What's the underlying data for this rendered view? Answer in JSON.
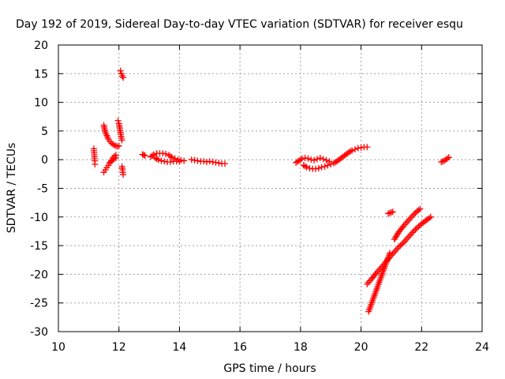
{
  "chart_data": {
    "type": "scatter",
    "title": "Day 192 of 2019, Sidereal Day-to-day VTEC variation (SDTVAR) for receiver esqu",
    "xlabel": "GPS time / hours",
    "ylabel": "SDTVAR / TECUs",
    "xlim": [
      10,
      24
    ],
    "ylim": [
      -30,
      20
    ],
    "xticks": [
      10,
      12,
      14,
      16,
      18,
      20,
      22,
      24
    ],
    "yticks": [
      -30,
      -25,
      -20,
      -15,
      -10,
      -5,
      0,
      5,
      10,
      15,
      20
    ],
    "xtick_labels": [
      "10",
      "12",
      "14",
      "16",
      "18",
      "20",
      "22",
      "24"
    ],
    "ytick_labels": [
      "-30",
      "-25",
      "-20",
      "-15",
      "-10",
      "-5",
      "0",
      "5",
      "10",
      "15",
      "20"
    ],
    "grid": true,
    "marker": "+",
    "color": "#ff0000",
    "series": [
      {
        "x": [
          11.17,
          11.18,
          11.19,
          11.2,
          11.21
        ],
        "y": [
          1.9,
          1.2,
          0.5,
          -0.2,
          -0.8
        ]
      },
      {
        "x": [
          11.5,
          11.55,
          11.6,
          11.65,
          11.7,
          11.75,
          11.8,
          11.85,
          11.9,
          11.95,
          12.0
        ],
        "y": [
          6.0,
          4.8,
          4.2,
          3.6,
          3.2,
          2.9,
          2.7,
          2.5,
          2.4,
          2.3,
          2.4
        ]
      },
      {
        "x": [
          11.5,
          11.55,
          11.6,
          11.65,
          11.7,
          11.75,
          11.8,
          11.85,
          11.9
        ],
        "y": [
          -2.2,
          -1.8,
          -1.4,
          -1.0,
          -0.6,
          -0.3,
          0.0,
          0.2,
          0.3
        ]
      },
      {
        "x": [
          11.7,
          11.75,
          11.8,
          11.85,
          11.9
        ],
        "y": [
          -0.5,
          -0.1,
          0.3,
          0.6,
          0.8
        ]
      },
      {
        "x": [
          11.97,
          12.0,
          12.03,
          12.06,
          12.1
        ],
        "y": [
          6.8,
          6.3,
          5.4,
          4.4,
          3.4
        ]
      },
      {
        "x": [
          12.05,
          12.08,
          12.11,
          12.14
        ],
        "y": [
          15.5,
          15.0,
          14.6,
          14.3
        ]
      },
      {
        "x": [
          12.1,
          12.12,
          12.14
        ],
        "y": [
          -1.2,
          -1.8,
          -2.6
        ]
      },
      {
        "x": [
          12.78,
          12.82,
          12.86
        ],
        "y": [
          0.9,
          0.8,
          0.7
        ]
      },
      {
        "x": [
          13.05,
          13.15,
          13.25,
          13.35,
          13.45,
          13.55,
          13.65,
          13.75,
          13.85,
          13.95,
          14.05,
          14.15
        ],
        "y": [
          0.5,
          0.9,
          1.1,
          1.1,
          1.1,
          1.0,
          0.8,
          0.4,
          0.2,
          0.0,
          -0.1,
          -0.2
        ]
      },
      {
        "x": [
          13.2,
          13.3,
          13.4,
          13.5,
          13.6,
          13.7,
          13.8,
          13.9,
          14.0
        ],
        "y": [
          0.3,
          0.0,
          -0.2,
          -0.3,
          -0.4,
          -0.4,
          -0.3,
          -0.3,
          -0.3
        ]
      },
      {
        "x": [
          14.4,
          14.5,
          14.6,
          14.7,
          14.8,
          14.9,
          15.0,
          15.1,
          15.2,
          15.3,
          15.4,
          15.5
        ],
        "y": [
          0.0,
          -0.1,
          -0.2,
          -0.3,
          -0.3,
          -0.4,
          -0.3,
          -0.4,
          -0.5,
          -0.6,
          -0.7,
          -0.7
        ]
      },
      {
        "x": [
          17.85,
          17.95,
          18.05,
          18.15,
          18.25,
          18.35,
          18.45,
          18.55,
          18.65,
          18.75,
          18.85,
          18.95
        ],
        "y": [
          -0.5,
          -0.2,
          0.2,
          0.3,
          0.2,
          0.0,
          -0.1,
          0.1,
          0.3,
          0.1,
          -0.1,
          -0.3
        ]
      },
      {
        "x": [
          18.1,
          18.2,
          18.3,
          18.4,
          18.5,
          18.6,
          18.7,
          18.8,
          18.9,
          19.0,
          19.1,
          19.2,
          19.3,
          19.4,
          19.5,
          19.6,
          19.7,
          19.8,
          19.9,
          20.0,
          20.1,
          20.2
        ],
        "y": [
          -1.0,
          -1.3,
          -1.5,
          -1.6,
          -1.6,
          -1.5,
          -1.3,
          -1.2,
          -1.0,
          -0.8,
          -0.6,
          -0.3,
          0.1,
          0.5,
          0.9,
          1.3,
          1.6,
          1.8,
          2.0,
          2.1,
          2.2,
          2.2
        ]
      },
      {
        "x": [
          20.2,
          20.35,
          20.5,
          20.65,
          20.8,
          20.95,
          21.1,
          21.25,
          21.4,
          21.55,
          21.7,
          21.85,
          22.0,
          22.15,
          22.3
        ],
        "y": [
          -21.7,
          -20.8,
          -19.8,
          -18.9,
          -18.0,
          -17.0,
          -16.1,
          -15.2,
          -14.5,
          -13.6,
          -12.7,
          -11.9,
          -11.2,
          -10.6,
          -10.0
        ]
      },
      {
        "x": [
          20.25,
          20.4,
          20.55,
          20.7,
          20.85,
          20.95
        ],
        "y": [
          -26.5,
          -24.3,
          -22.1,
          -19.9,
          -17.7,
          -16.3
        ]
      },
      {
        "x": [
          21.1,
          21.25,
          21.4,
          21.55,
          21.7,
          21.85,
          21.95
        ],
        "y": [
          -13.9,
          -12.6,
          -11.6,
          -10.7,
          -9.8,
          -9.0,
          -8.6
        ]
      },
      {
        "x": [
          20.9,
          20.95,
          21.0,
          21.05
        ],
        "y": [
          -9.4,
          -9.3,
          -9.2,
          -9.1
        ]
      },
      {
        "x": [
          22.65,
          22.7,
          22.75,
          22.8,
          22.85,
          22.9
        ],
        "y": [
          -0.4,
          -0.3,
          -0.2,
          0.0,
          0.2,
          0.4
        ]
      }
    ]
  }
}
